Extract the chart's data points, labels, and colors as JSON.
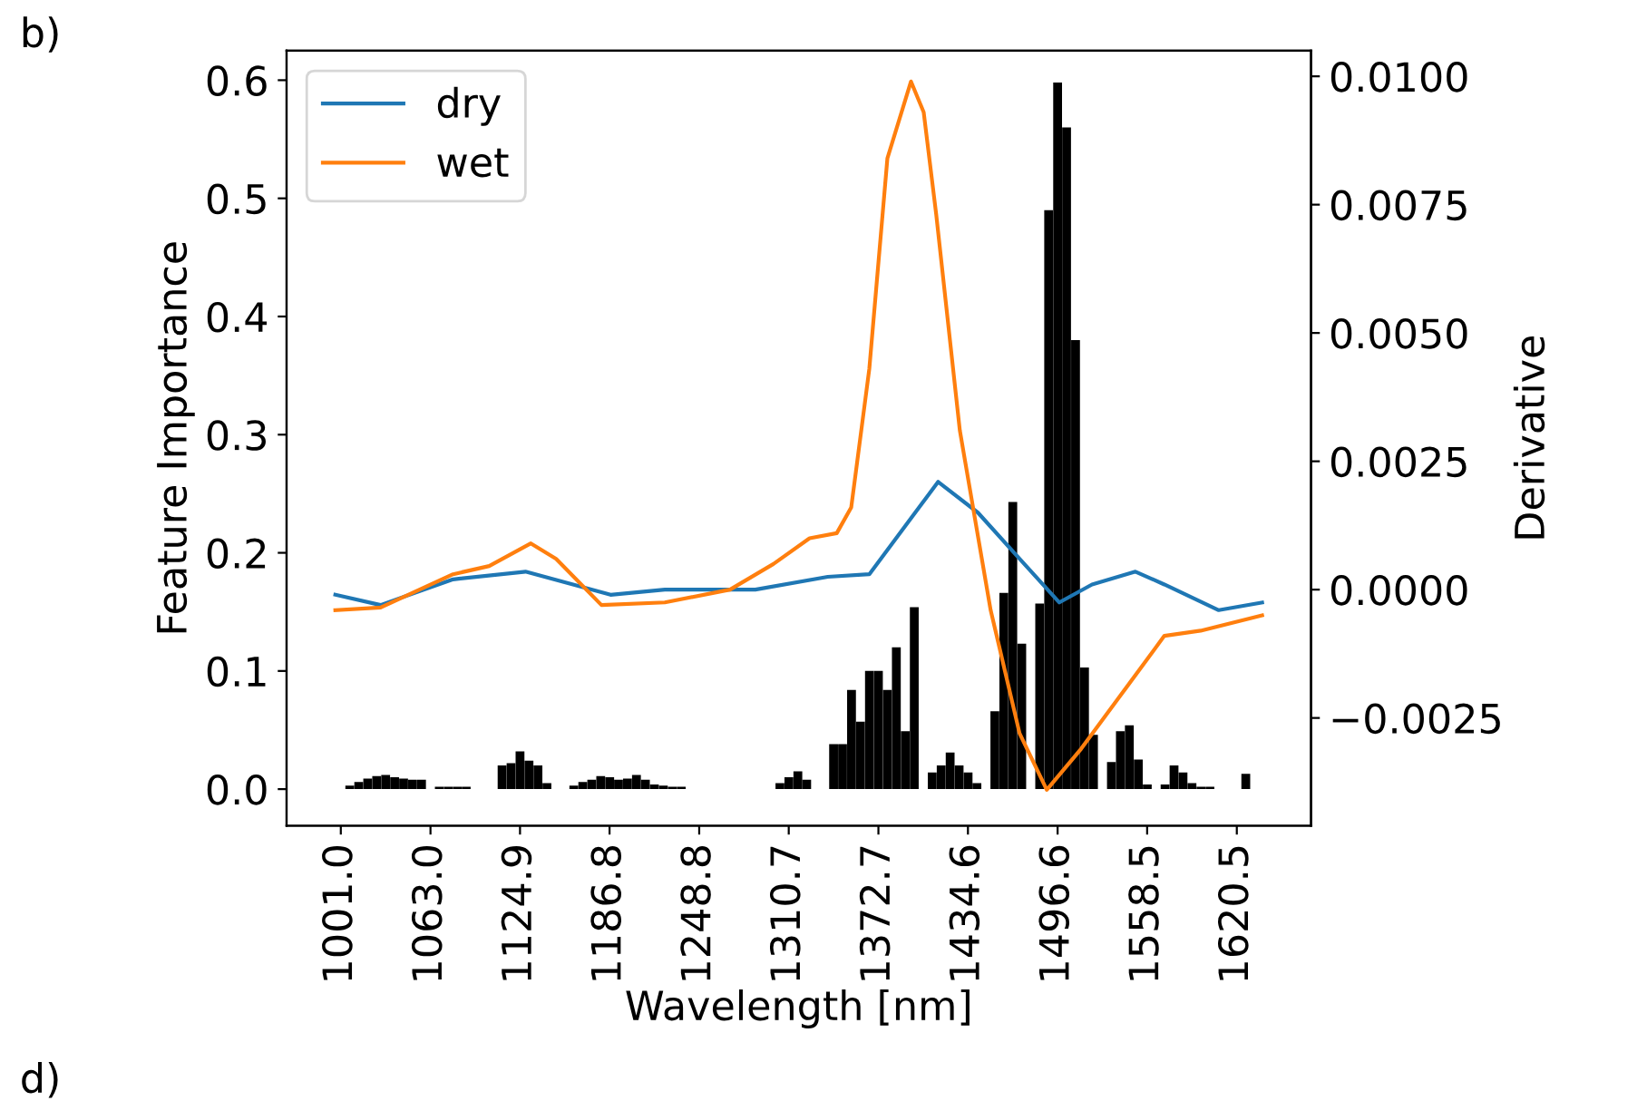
{
  "chart_data": {
    "type": "bar",
    "xlabel": "Wavelength [nm]",
    "ylabel": "Feature Importance",
    "y2label": "Derivative",
    "annotations": [
      "b)",
      "d)"
    ],
    "xlim": [
      963.5,
      1671.8
    ],
    "xticks": [
      {
        "value": 1001.0,
        "label": "1001.0"
      },
      {
        "value": 1063.0,
        "label": "1063.0"
      },
      {
        "value": 1124.9,
        "label": "1124.9"
      },
      {
        "value": 1186.8,
        "label": "1186.8"
      },
      {
        "value": 1248.8,
        "label": "1248.8"
      },
      {
        "value": 1310.7,
        "label": "1310.7"
      },
      {
        "value": 1372.7,
        "label": "1372.7"
      },
      {
        "value": 1434.6,
        "label": "1434.6"
      },
      {
        "value": 1496.6,
        "label": "1496.6"
      },
      {
        "value": 1558.5,
        "label": "1558.5"
      },
      {
        "value": 1620.5,
        "label": "1620.5"
      }
    ],
    "ylim": [
      -0.031,
      0.625
    ],
    "yticks": [
      {
        "value": 0.0,
        "label": "0.0"
      },
      {
        "value": 0.1,
        "label": "0.1"
      },
      {
        "value": 0.2,
        "label": "0.2"
      },
      {
        "value": 0.3,
        "label": "0.3"
      },
      {
        "value": 0.4,
        "label": "0.4"
      },
      {
        "value": 0.5,
        "label": "0.5"
      },
      {
        "value": 0.6,
        "label": "0.6"
      }
    ],
    "y2lim": [
      -0.0046,
      0.0105
    ],
    "y2ticks": [
      {
        "value": -0.0025,
        "label": "−0.0025"
      },
      {
        "value": 0.0,
        "label": "0.0000"
      },
      {
        "value": 0.0025,
        "label": "0.0025"
      },
      {
        "value": 0.005,
        "label": "0.0050"
      },
      {
        "value": 0.0075,
        "label": "0.0075"
      },
      {
        "value": 0.01,
        "label": "0.0100"
      }
    ],
    "legend": "top left",
    "grid": false,
    "series": [
      {
        "color": "#000000",
        "x": [
          1007.2,
          1013.4,
          1019.6,
          1025.8,
          1032.0,
          1038.2,
          1044.4,
          1050.6,
          1056.8,
          1069.1,
          1075.3,
          1081.5,
          1087.7,
          1112.5,
          1118.7,
          1124.9,
          1131.1,
          1137.3,
          1143.5,
          1162.1,
          1168.3,
          1174.5,
          1180.7,
          1186.9,
          1193.0,
          1199.2,
          1205.4,
          1211.6,
          1217.8,
          1224.0,
          1230.2,
          1236.4,
          1304.6,
          1310.8,
          1317.0,
          1323.1,
          1341.7,
          1347.9,
          1354.1,
          1360.3,
          1366.5,
          1372.7,
          1378.9,
          1385.1,
          1391.3,
          1397.5,
          1409.9,
          1416.1,
          1422.3,
          1428.5,
          1434.7,
          1440.8,
          1453.2,
          1459.4,
          1465.6,
          1471.8,
          1484.2,
          1490.4,
          1496.6,
          1502.8,
          1509.0,
          1515.2,
          1521.4,
          1533.8,
          1540.0,
          1546.2,
          1552.4,
          1558.6,
          1570.9,
          1577.1,
          1583.3,
          1589.5,
          1595.7,
          1601.9,
          1626.7
        ],
        "values": [
          0.003,
          0.006,
          0.009,
          0.011,
          0.012,
          0.01,
          0.009,
          0.008,
          0.008,
          0.002,
          0.002,
          0.002,
          0.002,
          0.02,
          0.022,
          0.032,
          0.024,
          0.02,
          0.005,
          0.003,
          0.006,
          0.008,
          0.011,
          0.01,
          0.008,
          0.009,
          0.012,
          0.008,
          0.004,
          0.003,
          0.002,
          0.002,
          0.005,
          0.01,
          0.015,
          0.008,
          0.038,
          0.038,
          0.084,
          0.057,
          0.1,
          0.1,
          0.084,
          0.12,
          0.049,
          0.154,
          0.014,
          0.02,
          0.031,
          0.02,
          0.014,
          0.005,
          0.066,
          0.166,
          0.243,
          0.123,
          0.157,
          0.49,
          0.598,
          0.56,
          0.38,
          0.103,
          0.046,
          0.023,
          0.049,
          0.054,
          0.025,
          0.004,
          0.004,
          0.02,
          0.014,
          0.005,
          0.002,
          0.002,
          0.013
        ]
      },
      {
        "type": "line",
        "name": "dry",
        "color": "#1f77b4",
        "axis": "y2",
        "x": [
          997.2,
          1028.5,
          1078.6,
          1128.7,
          1187.5,
          1225.0,
          1287.6,
          1337.7,
          1366.4,
          1414.0,
          1441.5,
          1470.3,
          1497.8,
          1520.4,
          1550.4,
          1570.4,
          1608.0,
          1638.0
        ],
        "values": [
          -0.0001,
          -0.0003,
          0.0002,
          0.00035,
          -0.0001,
          0.0,
          0.0,
          0.00025,
          0.0003,
          0.0021,
          0.0015,
          0.0006,
          -0.00025,
          0.0001,
          0.00035,
          0.0001,
          -0.0004,
          -0.00025
        ]
      },
      {
        "type": "line",
        "name": "wet",
        "color": "#ff7f0e",
        "axis": "y2",
        "x": [
          997.2,
          1028.5,
          1078.6,
          1103.6,
          1132.4,
          1149.9,
          1181.2,
          1225.0,
          1270.1,
          1300.1,
          1325.1,
          1343.9,
          1353.9,
          1366.4,
          1378.9,
          1395.2,
          1404.0,
          1412.7,
          1429.0,
          1450.3,
          1470.3,
          1489.1,
          1512.9,
          1541.7,
          1570.4,
          1595.5,
          1638.0
        ],
        "values": [
          -0.0004,
          -0.00035,
          0.0003,
          0.00046,
          0.0009,
          0.0006,
          -0.0003,
          -0.00025,
          0.0,
          0.0005,
          0.001,
          0.0011,
          0.0016,
          0.0043,
          0.0084,
          0.0099,
          0.0093,
          0.0073,
          0.0031,
          -0.0004,
          -0.0028,
          -0.0039,
          -0.0031,
          -0.002,
          -0.0009,
          -0.0008,
          -0.0005
        ]
      }
    ]
  }
}
